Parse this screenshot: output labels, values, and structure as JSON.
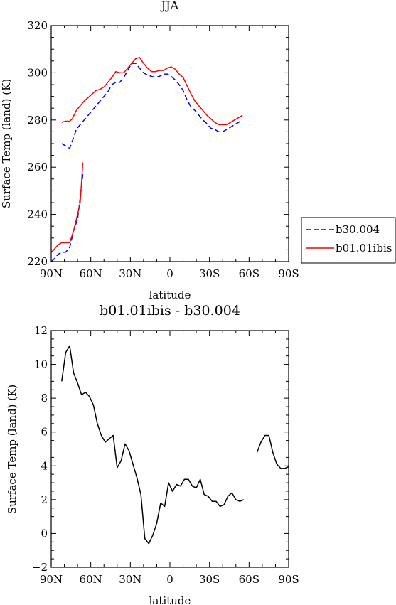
{
  "chart_data": [
    {
      "type": "line",
      "title": "JJA",
      "xlabel": "latitude",
      "ylabel": "Surface Temp (land) (K)",
      "xlim": [
        90,
        -90
      ],
      "ylim": [
        220,
        320
      ],
      "x_ticks": [
        90,
        60,
        30,
        0,
        -30,
        -60,
        -90
      ],
      "x_tick_labels": [
        "90N",
        "60N",
        "30N",
        "0",
        "30S",
        "60S",
        "90S"
      ],
      "y_ticks": [
        220,
        240,
        260,
        280,
        300,
        320
      ],
      "y_tick_labels": [
        "220",
        "240",
        "260",
        "280",
        "300",
        "320"
      ],
      "legend": "outside-right",
      "series": [
        {
          "name": "b30.004",
          "color": "#0000ff",
          "dash": "dashed",
          "segments": [
            {
              "x": [
                82,
                79,
                76,
                74,
                71,
                68,
                65,
                62,
                59,
                56,
                53,
                50,
                47,
                44,
                41,
                38,
                35,
                32,
                29,
                26,
                23,
                20,
                17,
                14,
                11,
                8,
                5,
                2,
                -1,
                -4,
                -7,
                -10,
                -13,
                -16,
                -19,
                -22,
                -25,
                -28,
                -31,
                -34,
                -37,
                -40,
                -43,
                -46,
                -49,
                -52,
                -55
              ],
              "y": [
                270,
                269,
                268,
                271,
                276,
                278,
                280,
                282,
                284,
                286,
                288,
                290,
                292,
                295,
                296,
                296,
                298,
                301,
                304,
                304,
                302,
                300,
                299,
                298.5,
                298,
                298.5,
                299.5,
                299.5,
                298.5,
                297,
                295,
                292.5,
                288.5,
                285.5,
                284,
                282,
                280,
                278.5,
                276.5,
                276,
                275,
                275,
                276,
                277,
                278,
                279,
                280
              ]
            },
            {
              "x": [
                66,
                68,
                70,
                73,
                76,
                79,
                82,
                85,
                88,
                90
              ],
              "y": [
                257,
                247,
                238,
                233,
                226,
                224,
                224,
                223,
                221,
                220
              ]
            }
          ]
        },
        {
          "name": "b01.01ibis",
          "color": "#ff0000",
          "dash": "solid",
          "segments": [
            {
              "x": [
                82,
                79,
                76,
                74,
                71,
                68,
                65,
                62,
                59,
                56,
                53,
                50,
                47,
                44,
                41,
                38,
                35,
                32,
                29,
                26,
                23,
                20,
                17,
                14,
                11,
                8,
                5,
                2,
                -1,
                -4,
                -7,
                -10,
                -13,
                -16,
                -19,
                -22,
                -25,
                -28,
                -31,
                -34,
                -37,
                -40,
                -43,
                -46,
                -49,
                -52,
                -55
              ],
              "y": [
                279,
                279.5,
                279.5,
                280.5,
                284,
                286,
                288,
                289.5,
                291,
                292.5,
                293,
                294,
                296,
                298,
                300.5,
                300,
                300,
                302,
                304,
                306,
                306.5,
                304,
                302,
                300.5,
                300.5,
                301,
                301,
                302,
                302.5,
                301.5,
                299.5,
                298,
                294.5,
                291,
                288,
                286,
                284,
                282,
                280.5,
                279,
                278,
                278,
                278,
                279,
                280,
                281,
                282
              ]
            },
            {
              "x": [
                66,
                68,
                70,
                73,
                76,
                79,
                82,
                85,
                88,
                90
              ],
              "y": [
                262,
                245,
                240,
                233,
                228,
                228,
                228,
                227,
                225,
                224
              ]
            }
          ]
        }
      ]
    },
    {
      "type": "line",
      "title": "b01.01ibis - b30.004",
      "xlabel": "latitude",
      "ylabel": "Surface Temp (land) (K)",
      "xlim": [
        90,
        -90
      ],
      "ylim": [
        -2,
        12
      ],
      "x_ticks": [
        90,
        60,
        30,
        0,
        -30,
        -60,
        -90
      ],
      "x_tick_labels": [
        "90N",
        "60N",
        "30N",
        "0",
        "30S",
        "60S",
        "90S"
      ],
      "y_ticks": [
        -2,
        0,
        2,
        4,
        6,
        8,
        10,
        12
      ],
      "y_tick_labels": [
        "−2",
        "0",
        "2",
        "4",
        "6",
        "8",
        "10",
        "12"
      ],
      "series": [
        {
          "color": "#000000",
          "dash": "solid",
          "segments": [
            {
              "x": [
                82,
                79,
                76,
                73,
                70,
                67,
                64,
                61,
                58,
                55,
                52,
                49,
                46,
                43,
                40,
                37,
                34,
                31,
                28,
                25,
                22,
                19,
                16,
                13,
                10,
                7,
                4,
                1,
                -2,
                -5,
                -8,
                -11,
                -14,
                -17,
                -20,
                -23,
                -26,
                -29,
                -32,
                -35,
                -38,
                -41,
                -44,
                -47,
                -50,
                -53,
                -56
              ],
              "y": [
                9.0,
                10.7,
                11.1,
                9.5,
                8.9,
                8.2,
                8.35,
                8.1,
                7.6,
                6.5,
                5.8,
                5.4,
                5.6,
                5.8,
                3.9,
                4.3,
                5.3,
                4.9,
                4.1,
                3.3,
                2.3,
                -0.3,
                -0.6,
                -0.1,
                0.6,
                1.8,
                1.6,
                3.0,
                2.5,
                2.9,
                2.8,
                3.2,
                3.2,
                2.8,
                2.7,
                3.2,
                2.3,
                2.2,
                1.9,
                1.9,
                1.6,
                1.7,
                2.2,
                2.4,
                2.0,
                1.9,
                2.0
              ]
            },
            {
              "x": [
                -66,
                -69,
                -72,
                -75,
                -78,
                -81,
                -84,
                -87,
                -90
              ],
              "y": [
                4.8,
                5.4,
                5.8,
                5.8,
                4.8,
                4.1,
                3.85,
                3.85,
                3.95
              ]
            }
          ]
        }
      ]
    }
  ]
}
